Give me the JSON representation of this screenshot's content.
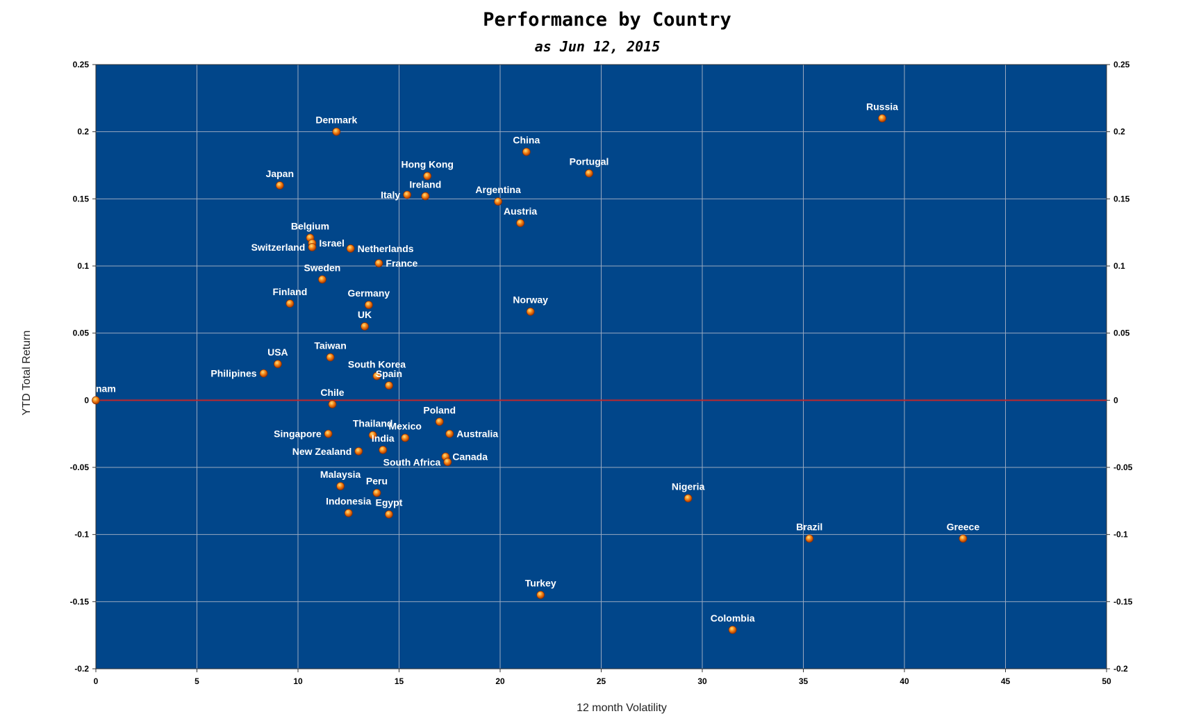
{
  "chart_data": {
    "type": "scatter",
    "title": "Performance by Country",
    "subtitle": "as Jun 12, 2015",
    "xlabel": "12 month Volatility",
    "ylabel": "YTD Total Return",
    "xlim": [
      0,
      50
    ],
    "ylim": [
      -0.2,
      0.25
    ],
    "xticks": [
      "0",
      "5",
      "10",
      "15",
      "20",
      "25",
      "30",
      "35",
      "40",
      "45",
      "50"
    ],
    "yticks": [
      "0.25",
      "0.2",
      "0.15",
      "0.1",
      "0.05",
      "0",
      "-0.05",
      "-0.1",
      "-0.15",
      "-0.2"
    ],
    "grid": true,
    "background_color": "#01468A",
    "point_color": "#F07A10",
    "zero_line_color": "#C0272D",
    "points": [
      {
        "label": "Russia",
        "x": 38.9,
        "y": 0.21
      },
      {
        "label": "Denmark",
        "x": 11.9,
        "y": 0.2
      },
      {
        "label": "China",
        "x": 21.3,
        "y": 0.185
      },
      {
        "label": "Portugal",
        "x": 24.4,
        "y": 0.169
      },
      {
        "label": "Hong Kong",
        "x": 16.4,
        "y": 0.167
      },
      {
        "label": "Japan",
        "x": 9.1,
        "y": 0.16
      },
      {
        "label": "Ireland",
        "x": 16.3,
        "y": 0.152
      },
      {
        "label": "Italy",
        "x": 15.4,
        "y": 0.153
      },
      {
        "label": "Argentina",
        "x": 19.9,
        "y": 0.148
      },
      {
        "label": "Austria",
        "x": 21.0,
        "y": 0.132
      },
      {
        "label": "Belgium",
        "x": 10.6,
        "y": 0.121
      },
      {
        "label": "Israel",
        "x": 10.7,
        "y": 0.117
      },
      {
        "label": "Switzerland",
        "x": 10.7,
        "y": 0.114
      },
      {
        "label": "Netherlands",
        "x": 12.6,
        "y": 0.113
      },
      {
        "label": "France",
        "x": 14.0,
        "y": 0.102
      },
      {
        "label": "Sweden",
        "x": 11.2,
        "y": 0.09
      },
      {
        "label": "Finland",
        "x": 9.6,
        "y": 0.072
      },
      {
        "label": "Germany",
        "x": 13.5,
        "y": 0.071
      },
      {
        "label": "Norway",
        "x": 21.5,
        "y": 0.066
      },
      {
        "label": "UK",
        "x": 13.3,
        "y": 0.055
      },
      {
        "label": "Taiwan",
        "x": 11.6,
        "y": 0.032
      },
      {
        "label": "USA",
        "x": 9.0,
        "y": 0.027
      },
      {
        "label": "Philipines",
        "x": 8.3,
        "y": 0.02
      },
      {
        "label": "South Korea",
        "x": 13.9,
        "y": 0.018
      },
      {
        "label": "Spain",
        "x": 14.5,
        "y": 0.011
      },
      {
        "label": "nam",
        "x": 0.0,
        "y": 0.0
      },
      {
        "label": "Chile",
        "x": 11.7,
        "y": -0.003
      },
      {
        "label": "Poland",
        "x": 17.0,
        "y": -0.016
      },
      {
        "label": "Singapore",
        "x": 11.5,
        "y": -0.025
      },
      {
        "label": "Thailand",
        "x": 13.7,
        "y": -0.026
      },
      {
        "label": "Australia",
        "x": 17.5,
        "y": -0.025
      },
      {
        "label": "Mexico",
        "x": 15.3,
        "y": -0.028
      },
      {
        "label": "India",
        "x": 14.2,
        "y": -0.037
      },
      {
        "label": "New Zealand",
        "x": 13.0,
        "y": -0.038
      },
      {
        "label": "Canada",
        "x": 17.3,
        "y": -0.042
      },
      {
        "label": "South Africa",
        "x": 17.4,
        "y": -0.046
      },
      {
        "label": "Malaysia",
        "x": 12.1,
        "y": -0.064
      },
      {
        "label": "Peru",
        "x": 13.9,
        "y": -0.069
      },
      {
        "label": "Nigeria",
        "x": 29.3,
        "y": -0.073
      },
      {
        "label": "Indonesia",
        "x": 12.5,
        "y": -0.084
      },
      {
        "label": "Egypt",
        "x": 14.5,
        "y": -0.085
      },
      {
        "label": "Brazil",
        "x": 35.3,
        "y": -0.103
      },
      {
        "label": "Greece",
        "x": 42.9,
        "y": -0.103
      },
      {
        "label": "Turkey",
        "x": 22.0,
        "y": -0.145
      },
      {
        "label": "Colombia",
        "x": 31.5,
        "y": -0.171
      }
    ]
  }
}
